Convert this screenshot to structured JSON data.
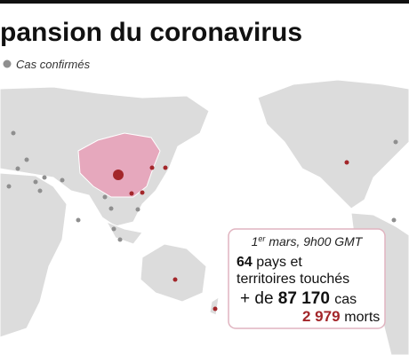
{
  "header": {
    "title": "pansion du coronavirus"
  },
  "legend": {
    "label": "Cas confirmés"
  },
  "info_box": {
    "date_day": "1",
    "date_sup": "er",
    "date_rest": " mars, 9h00 GMT",
    "countries": "64",
    "countries_line1": "pays et",
    "countries_line2": "territoires touchés",
    "cases_prefix": "+ de",
    "cases": "87 170",
    "cases_unit": "cas",
    "deaths": "2 979",
    "deaths_unit": "morts"
  }
}
